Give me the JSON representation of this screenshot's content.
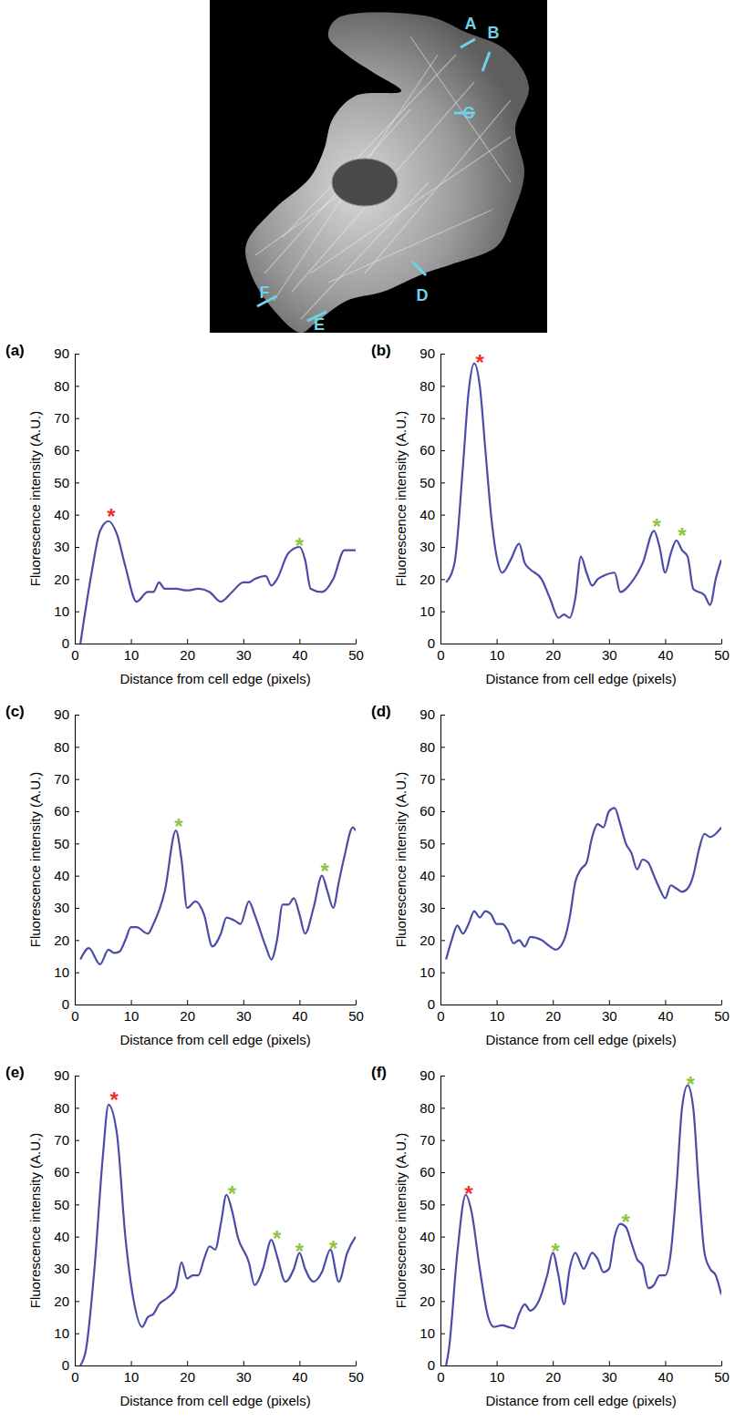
{
  "image": {
    "line_labels": [
      "A",
      "B",
      "C",
      "D",
      "E",
      "F"
    ]
  },
  "chart_data": [
    {
      "type": "line",
      "panel_label": "(a)",
      "x_label": "Distance from cell edge (pixels)",
      "y_label": "Fluorescence intensity (A.U.)",
      "xlim": [
        0,
        50
      ],
      "xticks": [
        0,
        10,
        20,
        30,
        40,
        50
      ],
      "ylim": [
        0,
        90
      ],
      "yticks": [
        0,
        10,
        20,
        30,
        40,
        50,
        60,
        70,
        80,
        90
      ],
      "x": [
        1,
        3,
        4.5,
        6,
        7.5,
        9,
        11,
        13,
        14,
        15,
        16,
        18,
        20,
        22,
        24,
        26,
        28,
        30,
        31,
        32,
        34,
        35,
        36,
        38,
        40,
        41,
        42,
        44,
        46,
        48,
        50
      ],
      "series": [
        {
          "color": "#4b4ba8",
          "values": [
            0,
            22,
            35,
            38,
            34,
            24,
            13,
            16,
            16,
            19,
            17,
            17,
            16.5,
            17,
            16,
            13,
            16,
            19,
            19,
            20,
            21,
            18,
            20,
            28,
            30,
            26,
            17,
            16,
            20,
            29,
            29
          ]
        }
      ],
      "annotations": [
        {
          "text": "*",
          "x": 6.5,
          "y": 41,
          "color": "#e8312a"
        },
        {
          "text": "*",
          "x": 40,
          "y": 32,
          "color": "#8cc63e"
        }
      ]
    },
    {
      "type": "line",
      "panel_label": "(b)",
      "x_label": "Distance from cell edge (pixels)",
      "y_label": "Fluorescence intensity (A.U.)",
      "xlim": [
        0,
        50
      ],
      "xticks": [
        0,
        10,
        20,
        30,
        40,
        50
      ],
      "ylim": [
        0,
        90
      ],
      "yticks": [
        0,
        10,
        20,
        30,
        40,
        50,
        60,
        70,
        80,
        90
      ],
      "x": [
        1,
        2.5,
        4,
        5,
        6,
        7,
        8,
        9,
        10,
        11,
        12.5,
        14,
        15,
        16,
        18,
        19.5,
        21,
        22,
        23,
        24,
        25,
        26,
        27,
        28,
        29,
        31,
        32,
        34,
        36,
        38,
        39,
        40,
        41,
        42,
        43,
        44,
        45,
        47,
        48,
        49,
        50
      ],
      "series": [
        {
          "color": "#4b4ba8",
          "values": [
            19,
            25,
            55,
            78,
            87,
            80,
            60,
            40,
            27,
            22,
            26,
            31,
            25,
            23,
            20,
            14,
            8,
            9,
            8,
            14,
            27,
            22,
            18,
            20,
            21,
            22,
            16,
            19,
            25,
            35,
            30,
            22,
            28,
            32,
            29,
            27,
            17,
            15,
            12,
            20,
            26
          ]
        }
      ],
      "annotations": [
        {
          "text": "*",
          "x": 7,
          "y": 89,
          "color": "#e8312a"
        },
        {
          "text": "*",
          "x": 38.5,
          "y": 38,
          "color": "#8cc63e"
        },
        {
          "text": "*",
          "x": 43,
          "y": 35,
          "color": "#8cc63e"
        }
      ]
    },
    {
      "type": "line",
      "panel_label": "(c)",
      "x_label": "Distance from cell edge (pixels)",
      "y_label": "Fluorescence intensity (A.U.)",
      "xlim": [
        0,
        50
      ],
      "xticks": [
        0,
        10,
        20,
        30,
        40,
        50
      ],
      "ylim": [
        0,
        90
      ],
      "yticks": [
        0,
        10,
        20,
        30,
        40,
        50,
        60,
        70,
        80,
        90
      ],
      "x": [
        1,
        2.5,
        4.5,
        6,
        7,
        8,
        9,
        10,
        11,
        13,
        14,
        16,
        18,
        19,
        20,
        21.5,
        23,
        24.5,
        26,
        27,
        28.5,
        29.5,
        31,
        32,
        34,
        35,
        36,
        37,
        38,
        39,
        40,
        41,
        42.5,
        44,
        45,
        46,
        47,
        48,
        49.5,
        50
      ],
      "series": [
        {
          "color": "#4b4ba8",
          "values": [
            14,
            17.5,
            12.5,
            17,
            16,
            16.5,
            20,
            24,
            24,
            22,
            25,
            35,
            54,
            45,
            30,
            32,
            28,
            18,
            22,
            27,
            26,
            25,
            32,
            28,
            18,
            14,
            20,
            31,
            31,
            33,
            28,
            22,
            30,
            40,
            35,
            30,
            38,
            46,
            55,
            54
          ]
        }
      ],
      "annotations": [
        {
          "text": "*",
          "x": 18.5,
          "y": 57,
          "color": "#8cc63e"
        },
        {
          "text": "*",
          "x": 44.5,
          "y": 43,
          "color": "#8cc63e"
        }
      ]
    },
    {
      "type": "line",
      "panel_label": "(d)",
      "x_label": "Distance from cell edge (pixels)",
      "y_label": "Fluorescence intensity (A.U.)",
      "xlim": [
        0,
        50
      ],
      "xticks": [
        0,
        10,
        20,
        30,
        40,
        50
      ],
      "ylim": [
        0,
        90
      ],
      "yticks": [
        0,
        10,
        20,
        30,
        40,
        50,
        60,
        70,
        80,
        90
      ],
      "x": [
        1,
        2,
        3,
        4,
        5,
        6,
        7,
        8,
        9,
        10,
        11,
        12,
        13,
        14,
        15,
        16,
        18,
        19.5,
        20.5,
        22,
        23,
        24,
        25,
        26,
        27,
        28,
        29,
        30,
        31,
        32,
        33,
        34,
        35,
        36,
        37,
        38,
        39,
        40,
        41,
        42,
        43,
        44,
        45,
        46,
        47,
        48,
        49,
        50
      ],
      "series": [
        {
          "color": "#4b4ba8",
          "values": [
            14,
            20,
            24.5,
            22,
            25,
            29,
            27,
            29,
            28,
            25,
            25,
            23,
            19,
            20,
            18,
            21,
            20,
            18,
            17,
            20,
            27,
            38,
            42,
            44,
            52,
            56,
            55,
            60,
            61,
            56,
            50,
            47,
            42,
            45,
            44,
            40,
            36,
            33,
            37,
            36,
            35,
            36,
            40,
            48,
            53,
            52,
            53,
            55
          ]
        }
      ],
      "annotations": []
    },
    {
      "type": "line",
      "panel_label": "(e)",
      "x_label": "Distance from cell edge (pixels)",
      "y_label": "Fluorescence intensity (A.U.)",
      "xlim": [
        0,
        50
      ],
      "xticks": [
        0,
        10,
        20,
        30,
        40,
        50
      ],
      "ylim": [
        0,
        90
      ],
      "yticks": [
        0,
        10,
        20,
        30,
        40,
        50,
        60,
        70,
        80,
        90
      ],
      "x": [
        1,
        2,
        3.5,
        5,
        6,
        7.5,
        9,
        10.5,
        12,
        13,
        14,
        15,
        16.5,
        18,
        19,
        20,
        21,
        22,
        23,
        24,
        25,
        26,
        27,
        28,
        29,
        31,
        32,
        33.5,
        35,
        36,
        37.5,
        39,
        40,
        41,
        42.5,
        44,
        45.5,
        47,
        48.5,
        50
      ],
      "series": [
        {
          "color": "#4b4ba8",
          "values": [
            0,
            5,
            30,
            65,
            81,
            72,
            40,
            20,
            12,
            15,
            16,
            19,
            21,
            24,
            32,
            27,
            28,
            28,
            33,
            37,
            36,
            44,
            53,
            48,
            40,
            32,
            25,
            30,
            39,
            34,
            26,
            30,
            35,
            30,
            26,
            29,
            36,
            26,
            35,
            40
          ]
        }
      ],
      "annotations": [
        {
          "text": "*",
          "x": 7,
          "y": 84,
          "color": "#e8312a"
        },
        {
          "text": "*",
          "x": 28,
          "y": 55,
          "color": "#8cc63e"
        },
        {
          "text": "*",
          "x": 36,
          "y": 41,
          "color": "#8cc63e"
        },
        {
          "text": "*",
          "x": 40,
          "y": 37,
          "color": "#8cc63e"
        },
        {
          "text": "*",
          "x": 46,
          "y": 38,
          "color": "#8cc63e"
        }
      ]
    },
    {
      "type": "line",
      "panel_label": "(f)",
      "x_label": "Distance from cell edge (pixels)",
      "y_label": "Fluorescence intensity (A.U.)",
      "xlim": [
        0,
        50
      ],
      "xticks": [
        0,
        10,
        20,
        30,
        40,
        50
      ],
      "ylim": [
        0,
        90
      ],
      "yticks": [
        0,
        10,
        20,
        30,
        40,
        50,
        60,
        70,
        80,
        90
      ],
      "x": [
        1,
        1.5,
        3,
        4.5,
        5.5,
        7,
        8.5,
        9.5,
        11,
        12,
        13,
        14,
        15,
        16,
        17.5,
        19,
        20,
        21,
        22,
        23,
        24,
        25.5,
        27,
        28,
        29,
        30,
        31,
        32,
        33,
        34,
        35,
        36,
        37,
        38,
        39,
        40,
        41,
        42,
        43,
        44,
        45,
        46,
        47,
        48,
        49,
        50
      ],
      "series": [
        {
          "color": "#4b4ba8",
          "values": [
            0,
            5,
            35,
            53,
            48,
            30,
            15,
            12,
            12.5,
            12,
            11.5,
            16,
            19,
            17,
            20,
            28,
            35,
            28,
            19,
            30,
            35,
            30,
            35,
            33,
            29,
            30,
            40,
            44,
            43,
            38,
            33,
            31,
            24,
            25,
            28,
            28,
            35,
            55,
            80,
            87,
            80,
            55,
            35,
            30,
            28,
            22
          ]
        }
      ],
      "annotations": [
        {
          "text": "*",
          "x": 5,
          "y": 55,
          "color": "#e8312a"
        },
        {
          "text": "*",
          "x": 20.5,
          "y": 37,
          "color": "#8cc63e"
        },
        {
          "text": "*",
          "x": 33,
          "y": 46,
          "color": "#8cc63e"
        },
        {
          "text": "*",
          "x": 44.5,
          "y": 89,
          "color": "#8cc63e"
        }
      ]
    }
  ]
}
